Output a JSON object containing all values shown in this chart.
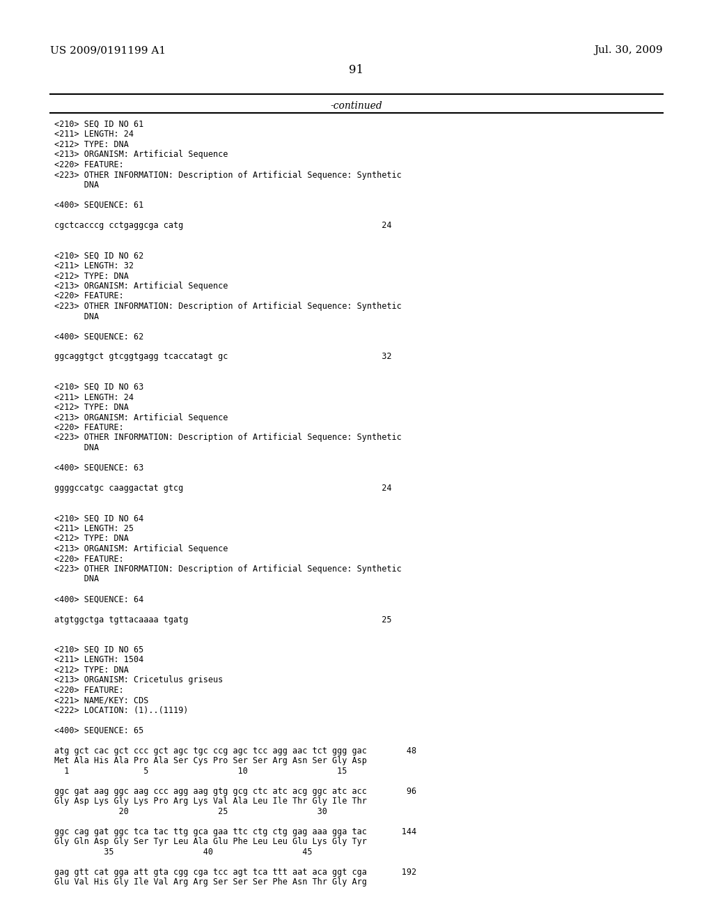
{
  "header_left": "US 2009/0191199 A1",
  "header_right": "Jul. 30, 2009",
  "page_number": "91",
  "continued_label": "-continued",
  "background_color": "#ffffff",
  "text_color": "#000000",
  "content_lines": [
    "<210> SEQ ID NO 61",
    "<211> LENGTH: 24",
    "<212> TYPE: DNA",
    "<213> ORGANISM: Artificial Sequence",
    "<220> FEATURE:",
    "<223> OTHER INFORMATION: Description of Artificial Sequence: Synthetic",
    "      DNA",
    "",
    "<400> SEQUENCE: 61",
    "",
    "cgctcacccg cctgaggcga catg                                        24",
    "",
    "",
    "<210> SEQ ID NO 62",
    "<211> LENGTH: 32",
    "<212> TYPE: DNA",
    "<213> ORGANISM: Artificial Sequence",
    "<220> FEATURE:",
    "<223> OTHER INFORMATION: Description of Artificial Sequence: Synthetic",
    "      DNA",
    "",
    "<400> SEQUENCE: 62",
    "",
    "ggcaggtgct gtcggtgagg tcaccatagt gc                               32",
    "",
    "",
    "<210> SEQ ID NO 63",
    "<211> LENGTH: 24",
    "<212> TYPE: DNA",
    "<213> ORGANISM: Artificial Sequence",
    "<220> FEATURE:",
    "<223> OTHER INFORMATION: Description of Artificial Sequence: Synthetic",
    "      DNA",
    "",
    "<400> SEQUENCE: 63",
    "",
    "ggggccatgc caaggactat gtcg                                        24",
    "",
    "",
    "<210> SEQ ID NO 64",
    "<211> LENGTH: 25",
    "<212> TYPE: DNA",
    "<213> ORGANISM: Artificial Sequence",
    "<220> FEATURE:",
    "<223> OTHER INFORMATION: Description of Artificial Sequence: Synthetic",
    "      DNA",
    "",
    "<400> SEQUENCE: 64",
    "",
    "atgtggctga tgttacaaaa tgatg                                       25",
    "",
    "",
    "<210> SEQ ID NO 65",
    "<211> LENGTH: 1504",
    "<212> TYPE: DNA",
    "<213> ORGANISM: Cricetulus griseus",
    "<220> FEATURE:",
    "<221> NAME/KEY: CDS",
    "<222> LOCATION: (1)..(1119)",
    "",
    "<400> SEQUENCE: 65",
    "",
    "atg gct cac gct ccc gct agc tgc ccg agc tcc agg aac tct ggg gac        48",
    "Met Ala His Ala Pro Ala Ser Cys Pro Ser Ser Arg Asn Ser Gly Asp",
    "  1               5                  10                  15",
    "",
    "ggc gat aag ggc aag ccc agg aag gtg gcg ctc atc acg ggc atc acc        96",
    "Gly Asp Lys Gly Lys Pro Arg Lys Val Ala Leu Ile Thr Gly Ile Thr",
    "             20                  25                  30",
    "",
    "ggc cag gat ggc tca tac ttg gca gaa ttc ctg ctg gag aaa gga tac       144",
    "Gly Gln Asp Gly Ser Tyr Leu Ala Glu Phe Leu Leu Glu Lys Gly Tyr",
    "          35                  40                  45",
    "",
    "gag gtt cat gga att gta cgg cga tcc agt tca ttt aat aca ggt cga       192",
    "Glu Val His Gly Ile Val Arg Arg Ser Ser Ser Phe Asn Thr Gly Arg"
  ]
}
